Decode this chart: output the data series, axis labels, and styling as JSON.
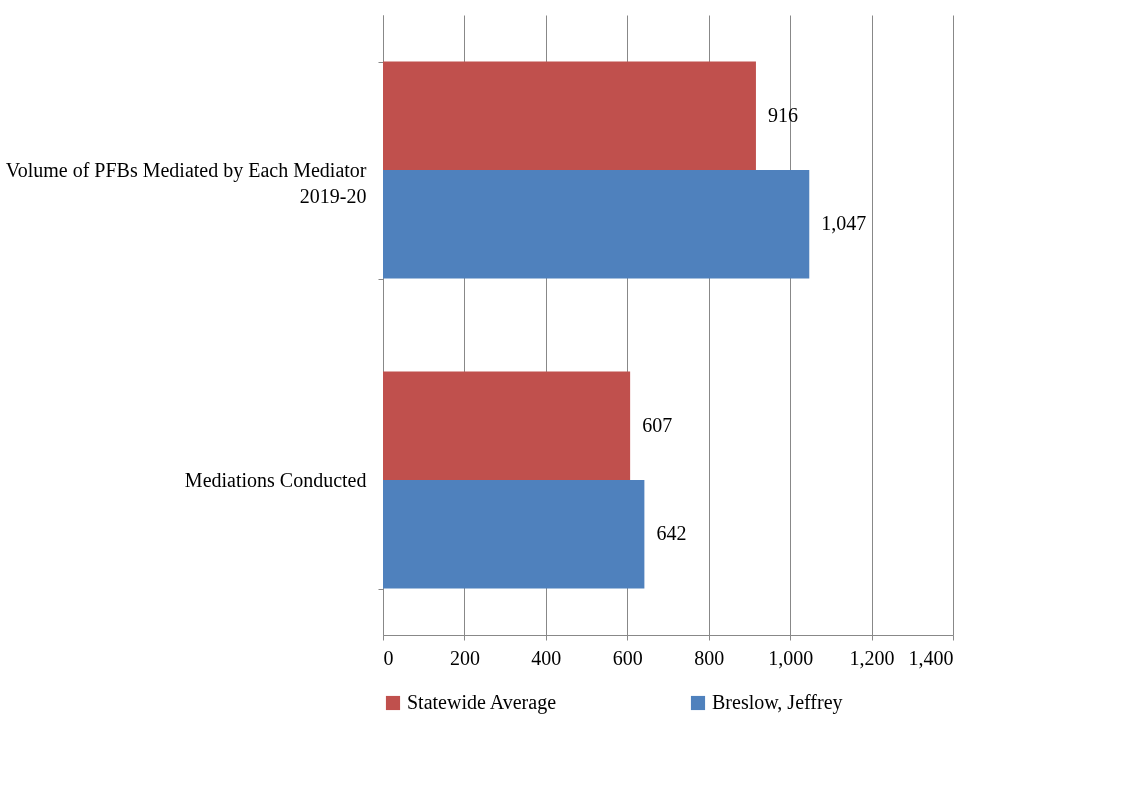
{
  "chart_data": {
    "type": "bar",
    "orientation": "horizontal",
    "categories": [
      "Volume of PFBs Mediated by Each Mediator 2019-20",
      "Mediations Conducted"
    ],
    "series": [
      {
        "name": "Statewide Average",
        "color": "#c0504d",
        "values": [
          916,
          607
        ],
        "value_labels": [
          "916",
          "607"
        ]
      },
      {
        "name": "Breslow, Jeffrey",
        "color": "#4f81bd",
        "values": [
          1047,
          642
        ],
        "value_labels": [
          "1,047",
          "642"
        ]
      }
    ],
    "xlim": [
      0,
      1400
    ],
    "xticks": [
      0,
      200,
      400,
      600,
      800,
      {
        "value": 1000,
        "label": "1,000"
      },
      {
        "value": 1200,
        "label": "1,200"
      },
      {
        "value": 1400,
        "label": "1,400"
      }
    ],
    "grid": "x",
    "legend": "bottom"
  }
}
